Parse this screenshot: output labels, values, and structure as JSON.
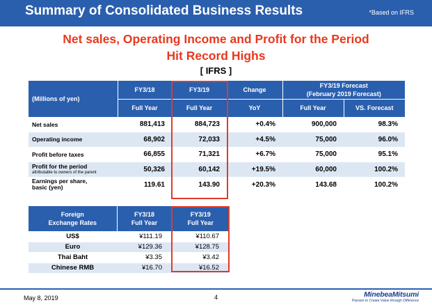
{
  "header": {
    "title": "Summary of Consolidated Business Results",
    "note": "*Based on IFRS",
    "color": "#2a5fae"
  },
  "headline": {
    "line1": "Net sales, Operating Income and Profit for the Period",
    "line2": "Hit Record Highs",
    "color": "#e8381e"
  },
  "standard_label": "[ IFRS ]",
  "main_table": {
    "header": {
      "label": "(Millions of yen)",
      "fy18_top": "FY3/18",
      "fy18_sub": "Full Year",
      "fy19_top": "FY3/19",
      "fy19_sub": "Full Year",
      "change_top": "Change",
      "change_sub": "YoY",
      "forecast_top_1": "FY3/19 Forecast",
      "forecast_top_2": "(February 2019 Forecast)",
      "forecast_sub": "Full Year",
      "vs_forecast_sub": "VS. Forecast"
    },
    "rows": [
      {
        "label": "Net sales",
        "sublabel": "",
        "fy18": "881,413",
        "fy19": "884,723",
        "change": "+0.4%",
        "forecast": "900,000",
        "vs": "98.3%"
      },
      {
        "label": "Operating income",
        "sublabel": "",
        "fy18": "68,902",
        "fy19": "72,033",
        "change": "+4.5%",
        "forecast": "75,000",
        "vs": "96.0%"
      },
      {
        "label": "Profit before taxes",
        "sublabel": "",
        "fy18": "66,855",
        "fy19": "71,321",
        "change": "+6.7%",
        "forecast": "75,000",
        "vs": "95.1%"
      },
      {
        "label": "Profit for the period",
        "sublabel": "attributable to owners of the parent",
        "fy18": "50,326",
        "fy19": "60,142",
        "change": "+19.5%",
        "forecast": "60,000",
        "vs": "100.2%"
      },
      {
        "label": "Earnings per share,",
        "sublabel": "basic (yen)",
        "fy18": "119.61",
        "fy19": "143.90",
        "change": "+20.3%",
        "forecast": "143.68",
        "vs": "100.2%"
      }
    ]
  },
  "fx_table": {
    "header": {
      "label_1": "Foreign",
      "label_2": "Exchange Rates",
      "fy18_top": "FY3/18",
      "fy18_sub": "Full Year",
      "fy19_top": "FY3/19",
      "fy19_sub": "Full Year"
    },
    "rows": [
      {
        "label": "US$",
        "fy18": "¥111.19",
        "fy19": "¥110.67"
      },
      {
        "label": "Euro",
        "fy18": "¥129.36",
        "fy19": "¥128.75"
      },
      {
        "label": "Thai Baht",
        "fy18": "¥3.35",
        "fy19": "¥3.42"
      },
      {
        "label": "Chinese RMB",
        "fy18": "¥16.70",
        "fy19": "¥16.52"
      }
    ]
  },
  "highlight_color": "#e23a2a",
  "footer": {
    "date": "May 8, 2019",
    "page": "4",
    "brand": "MinebeaMitsumi",
    "tagline": "Passion to Create Value through Difference"
  }
}
